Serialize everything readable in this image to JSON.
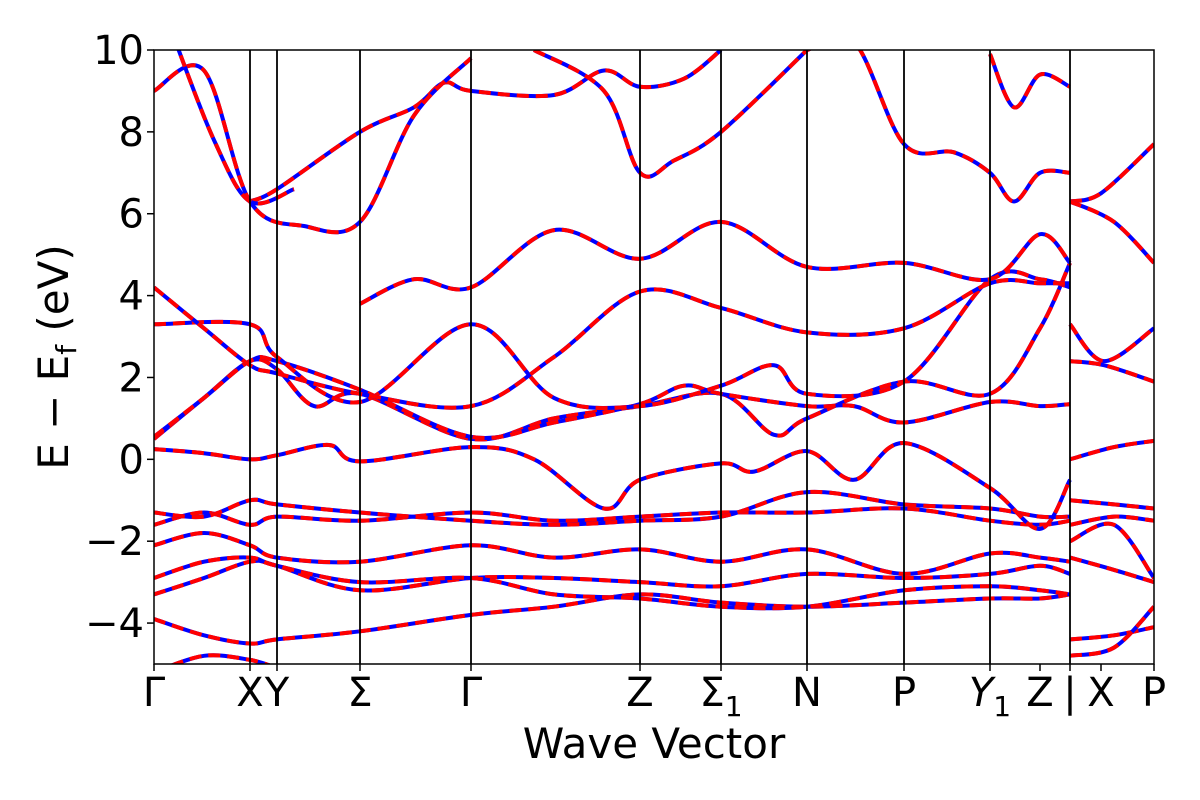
{
  "chart_data": {
    "type": "line",
    "xlabel": "Wave Vector",
    "ylabel_main": "E − E",
    "ylabel_sub": "f",
    "ylabel_unit": "(eV)",
    "ylim": [
      -5,
      10
    ],
    "xlim": [
      0,
      1
    ],
    "yticks": [
      -4,
      -2,
      0,
      2,
      4,
      6,
      8,
      10
    ],
    "ytick_labels": [
      "−4",
      "−2",
      "0",
      "2",
      "4",
      "6",
      "8",
      "10"
    ],
    "high_symmetry_points": [
      {
        "x": 0.0,
        "label": "Γ",
        "sub": ""
      },
      {
        "x": 0.096,
        "label": "X",
        "sub": ""
      },
      {
        "x": 0.123,
        "label": "Y",
        "sub": ""
      },
      {
        "x": 0.206,
        "label": "Σ",
        "sub": ""
      },
      {
        "x": 0.317,
        "label": "Γ",
        "sub": ""
      },
      {
        "x": 0.486,
        "label": "Z",
        "sub": ""
      },
      {
        "x": 0.567,
        "label": "Σ",
        "sub": "1"
      },
      {
        "x": 0.653,
        "label": "N",
        "sub": ""
      },
      {
        "x": 0.75,
        "label": "P",
        "sub": ""
      },
      {
        "x": 0.836,
        "label": "Y",
        "sub": "1",
        "italic": true
      },
      {
        "x": 0.886,
        "label": "Z",
        "sub": ""
      },
      {
        "x": 0.916,
        "label": "|",
        "sub": ""
      },
      {
        "x": 0.947,
        "label": "X",
        "sub": ""
      },
      {
        "x": 1.0,
        "label": "P",
        "sub": ""
      }
    ],
    "vertical_lines": [
      0.096,
      0.123,
      0.206,
      0.317,
      0.486,
      0.567,
      0.653,
      0.75,
      0.836,
      0.916
    ],
    "segment_breaks": [
      0.916
    ],
    "series_styles": [
      {
        "color": "#0000ff",
        "dash": "none",
        "width": 4
      },
      {
        "color": "#ff0000",
        "dash": "12,7",
        "width": 4
      }
    ],
    "bands": [
      [
        [
          0,
          -5.2
        ],
        [
          0.05,
          -4.8
        ],
        [
          0.096,
          -4.9
        ],
        [
          0.123,
          -5.1
        ]
      ],
      [
        [
          0,
          -3.9
        ],
        [
          0.05,
          -4.3
        ],
        [
          0.096,
          -4.5
        ],
        [
          0.123,
          -4.4
        ],
        [
          0.206,
          -4.2
        ],
        [
          0.317,
          -3.8
        ],
        [
          0.4,
          -3.6
        ],
        [
          0.486,
          -3.3
        ],
        [
          0.567,
          -3.5
        ],
        [
          0.653,
          -3.6
        ],
        [
          0.75,
          -3.5
        ],
        [
          0.836,
          -3.4
        ],
        [
          0.886,
          -3.4
        ],
        [
          0.916,
          -3.3
        ]
      ],
      [
        [
          0,
          -3.3
        ],
        [
          0.05,
          -2.9
        ],
        [
          0.096,
          -2.5
        ],
        [
          0.123,
          -2.6
        ],
        [
          0.206,
          -3.2
        ],
        [
          0.317,
          -2.9
        ],
        [
          0.4,
          -2.9
        ],
        [
          0.486,
          -3.0
        ],
        [
          0.567,
          -3.1
        ],
        [
          0.653,
          -2.8
        ],
        [
          0.75,
          -2.9
        ],
        [
          0.836,
          -2.8
        ],
        [
          0.886,
          -2.6
        ],
        [
          0.916,
          -2.8
        ]
      ],
      [
        [
          0,
          -2.9
        ],
        [
          0.05,
          -2.5
        ],
        [
          0.096,
          -2.4
        ],
        [
          0.123,
          -2.6
        ],
        [
          0.206,
          -3.0
        ],
        [
          0.317,
          -2.9
        ],
        [
          0.4,
          -3.3
        ],
        [
          0.486,
          -3.4
        ],
        [
          0.567,
          -3.6
        ],
        [
          0.653,
          -3.6
        ],
        [
          0.75,
          -3.2
        ],
        [
          0.836,
          -3.1
        ],
        [
          0.886,
          -3.2
        ],
        [
          0.916,
          -3.3
        ]
      ],
      [
        [
          0,
          -2.1
        ],
        [
          0.05,
          -1.8
        ],
        [
          0.096,
          -2.1
        ],
        [
          0.123,
          -2.4
        ],
        [
          0.206,
          -2.5
        ],
        [
          0.317,
          -2.1
        ],
        [
          0.4,
          -2.4
        ],
        [
          0.486,
          -2.2
        ],
        [
          0.567,
          -2.5
        ],
        [
          0.653,
          -2.2
        ],
        [
          0.75,
          -2.8
        ],
        [
          0.836,
          -2.3
        ],
        [
          0.886,
          -2.4
        ],
        [
          0.916,
          -2.5
        ]
      ],
      [
        [
          0,
          -1.6
        ],
        [
          0.05,
          -1.3
        ],
        [
          0.096,
          -1.6
        ],
        [
          0.123,
          -1.4
        ],
        [
          0.206,
          -1.5
        ],
        [
          0.317,
          -1.3
        ],
        [
          0.4,
          -1.5
        ],
        [
          0.486,
          -1.4
        ],
        [
          0.567,
          -1.3
        ],
        [
          0.653,
          -1.3
        ],
        [
          0.75,
          -1.2
        ],
        [
          0.836,
          -1.5
        ],
        [
          0.886,
          -1.6
        ],
        [
          0.916,
          -1.5
        ]
      ],
      [
        [
          0,
          -1.3
        ],
        [
          0.05,
          -1.4
        ],
        [
          0.096,
          -1.0
        ],
        [
          0.123,
          -1.1
        ],
        [
          0.206,
          -1.3
        ],
        [
          0.317,
          -1.5
        ],
        [
          0.4,
          -1.6
        ],
        [
          0.486,
          -1.5
        ],
        [
          0.567,
          -1.4
        ],
        [
          0.653,
          -0.8
        ],
        [
          0.75,
          -1.1
        ],
        [
          0.836,
          -1.2
        ],
        [
          0.886,
          -1.4
        ],
        [
          0.916,
          -1.4
        ]
      ],
      [
        [
          0,
          0.25
        ],
        [
          0.05,
          0.15
        ],
        [
          0.096,
          0.0
        ],
        [
          0.123,
          0.1
        ],
        [
          0.175,
          0.35
        ],
        [
          0.206,
          -0.05
        ],
        [
          0.317,
          0.3
        ],
        [
          0.38,
          0.0
        ],
        [
          0.45,
          -1.2
        ],
        [
          0.486,
          -0.5
        ],
        [
          0.567,
          -0.1
        ],
        [
          0.6,
          -0.3
        ],
        [
          0.653,
          0.2
        ],
        [
          0.7,
          -0.5
        ],
        [
          0.75,
          0.4
        ],
        [
          0.836,
          -0.7
        ],
        [
          0.886,
          -1.7
        ],
        [
          0.916,
          -0.5
        ]
      ],
      [
        [
          0,
          0.5
        ],
        [
          0.05,
          1.5
        ],
        [
          0.096,
          2.4
        ],
        [
          0.123,
          2.2
        ],
        [
          0.16,
          1.3
        ],
        [
          0.206,
          1.6
        ],
        [
          0.317,
          0.5
        ],
        [
          0.4,
          1.0
        ],
        [
          0.486,
          1.3
        ],
        [
          0.567,
          1.6
        ],
        [
          0.62,
          0.6
        ],
        [
          0.653,
          1.0
        ],
        [
          0.75,
          1.9
        ],
        [
          0.836,
          1.6
        ],
        [
          0.886,
          3.2
        ],
        [
          0.916,
          4.8
        ]
      ],
      [
        [
          0,
          0.55
        ],
        [
          0.05,
          1.5
        ],
        [
          0.096,
          2.4
        ],
        [
          0.123,
          2.4
        ],
        [
          0.206,
          1.7
        ],
        [
          0.317,
          0.55
        ],
        [
          0.4,
          0.9
        ],
        [
          0.486,
          1.35
        ],
        [
          0.53,
          1.8
        ],
        [
          0.567,
          1.6
        ],
        [
          0.653,
          1.3
        ],
        [
          0.7,
          1.3
        ],
        [
          0.75,
          0.9
        ],
        [
          0.836,
          1.4
        ],
        [
          0.886,
          1.3
        ],
        [
          0.916,
          1.35
        ]
      ],
      [
        [
          0,
          3.3
        ],
        [
          0.096,
          3.3
        ],
        [
          0.123,
          2.5
        ],
        [
          0.206,
          1.4
        ],
        [
          0.317,
          3.3
        ],
        [
          0.4,
          1.5
        ],
        [
          0.486,
          1.3
        ],
        [
          0.567,
          1.8
        ],
        [
          0.62,
          2.3
        ],
        [
          0.653,
          1.6
        ],
        [
          0.75,
          1.9
        ],
        [
          0.836,
          4.4
        ],
        [
          0.886,
          4.4
        ],
        [
          0.916,
          4.2
        ]
      ],
      [
        [
          0,
          4.2
        ],
        [
          0.05,
          3.2
        ],
        [
          0.096,
          2.3
        ],
        [
          0.123,
          2.1
        ],
        [
          0.206,
          1.6
        ],
        [
          0.317,
          1.3
        ],
        [
          0.4,
          2.5
        ],
        [
          0.486,
          4.1
        ],
        [
          0.567,
          3.7
        ],
        [
          0.653,
          3.1
        ],
        [
          0.75,
          3.2
        ],
        [
          0.836,
          4.3
        ],
        [
          0.886,
          4.3
        ],
        [
          0.916,
          4.3
        ]
      ],
      [
        [
          0.096,
          6.3
        ],
        [
          0.123,
          6.6
        ],
        [
          0.206,
          8.0
        ],
        [
          0.26,
          8.6
        ],
        [
          0.29,
          9.2
        ],
        [
          0.317,
          9.0
        ],
        [
          0.4,
          8.9
        ],
        [
          0.45,
          9.5
        ],
        [
          0.486,
          9.1
        ],
        [
          0.53,
          9.3
        ],
        [
          0.567,
          10.0
        ]
      ],
      [
        [
          0.206,
          3.8
        ],
        [
          0.26,
          4.4
        ],
        [
          0.317,
          4.2
        ],
        [
          0.4,
          5.6
        ],
        [
          0.486,
          4.9
        ],
        [
          0.567,
          5.8
        ],
        [
          0.653,
          4.7
        ],
        [
          0.75,
          4.8
        ],
        [
          0.836,
          4.4
        ],
        [
          0.886,
          5.5
        ],
        [
          0.916,
          4.8
        ]
      ],
      [
        [
          0,
          9.0
        ],
        [
          0.05,
          9.5
        ],
        [
          0.096,
          6.3
        ],
        [
          0.15,
          5.7
        ],
        [
          0.206,
          5.8
        ],
        [
          0.26,
          8.4
        ],
        [
          0.317,
          9.8
        ]
      ],
      [
        [
          0.02,
          10.3
        ],
        [
          0.06,
          7.8
        ],
        [
          0.096,
          6.3
        ],
        [
          0.14,
          6.6
        ]
      ],
      [
        [
          0.38,
          10.0
        ],
        [
          0.45,
          9.0
        ],
        [
          0.486,
          7.0
        ],
        [
          0.52,
          7.3
        ],
        [
          0.567,
          8.0
        ],
        [
          0.653,
          10.0
        ]
      ],
      [
        [
          0.653,
          10.0
        ],
        [
          0.7,
          10.2
        ],
        [
          0.75,
          7.7
        ],
        [
          0.8,
          7.5
        ],
        [
          0.836,
          7.0
        ],
        [
          0.86,
          6.3
        ],
        [
          0.886,
          7.0
        ],
        [
          0.916,
          7.0
        ]
      ],
      [
        [
          0.836,
          9.9
        ],
        [
          0.86,
          8.6
        ],
        [
          0.886,
          9.4
        ],
        [
          0.916,
          9.1
        ]
      ],
      [
        [
          0.916,
          6.3
        ],
        [
          0.947,
          6.5
        ],
        [
          1.0,
          7.7
        ]
      ],
      [
        [
          0.916,
          6.3
        ],
        [
          0.96,
          5.8
        ],
        [
          1.0,
          4.8
        ]
      ],
      [
        [
          0.916,
          3.3
        ],
        [
          0.95,
          2.4
        ],
        [
          1.0,
          3.2
        ]
      ],
      [
        [
          0.916,
          2.4
        ],
        [
          0.95,
          2.3
        ],
        [
          1.0,
          1.9
        ]
      ],
      [
        [
          0.916,
          0.0
        ],
        [
          0.96,
          0.3
        ],
        [
          1.0,
          0.45
        ]
      ],
      [
        [
          0.916,
          -1.0
        ],
        [
          0.96,
          -1.1
        ],
        [
          1.0,
          -1.2
        ]
      ],
      [
        [
          0.916,
          -1.6
        ],
        [
          0.96,
          -1.4
        ],
        [
          1.0,
          -1.5
        ]
      ],
      [
        [
          0.916,
          -2.0
        ],
        [
          0.96,
          -1.6
        ],
        [
          1.0,
          -2.9
        ]
      ],
      [
        [
          0.916,
          -2.4
        ],
        [
          0.96,
          -2.7
        ],
        [
          1.0,
          -3.0
        ]
      ],
      [
        [
          0.916,
          -4.4
        ],
        [
          0.96,
          -4.3
        ],
        [
          1.0,
          -4.1
        ]
      ],
      [
        [
          0.916,
          -4.8
        ],
        [
          0.96,
          -4.6
        ],
        [
          1.0,
          -3.6
        ]
      ]
    ]
  }
}
